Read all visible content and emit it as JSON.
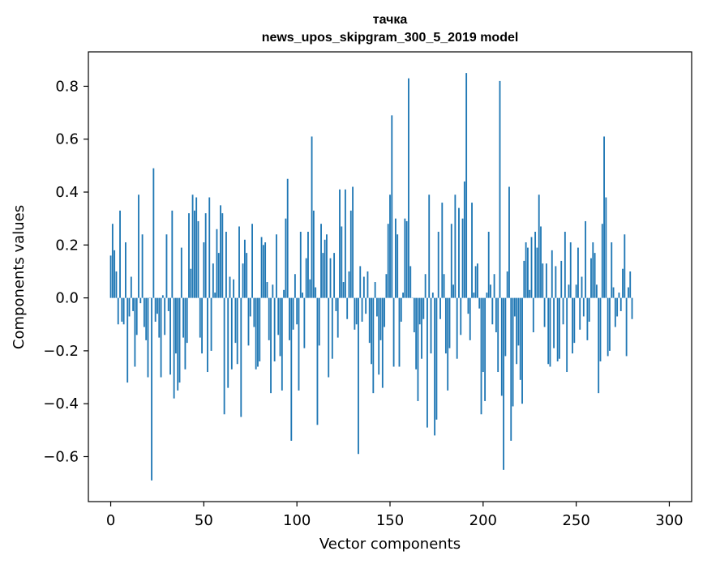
{
  "chart_data": {
    "type": "bar",
    "title_line1": "тачка",
    "title_line2": "news_upos_skipgram_300_5_2019 model",
    "xlabel": "Vector components",
    "ylabel": "Components values",
    "xlim": [
      -12,
      312
    ],
    "ylim": [
      -0.77,
      0.93
    ],
    "xticks": [
      0,
      50,
      100,
      150,
      200,
      250,
      300
    ],
    "xtick_labels": [
      "0",
      "50",
      "100",
      "150",
      "200",
      "250",
      "300"
    ],
    "yticks": [
      -0.6,
      -0.4,
      -0.2,
      0.0,
      0.2,
      0.4,
      0.6,
      0.8
    ],
    "ytick_labels": [
      "−0.6",
      "−0.4",
      "−0.2",
      "0.0",
      "0.2",
      "0.4",
      "0.6",
      "0.8"
    ],
    "bar_color": "#1f77b4",
    "grid": false,
    "legend": "none",
    "x_start": 0,
    "values": [
      0.16,
      0.28,
      0.18,
      0.1,
      -0.1,
      0.33,
      -0.09,
      -0.1,
      0.21,
      -0.32,
      -0.07,
      0.08,
      -0.05,
      -0.26,
      -0.14,
      0.39,
      -0.02,
      0.24,
      -0.11,
      -0.16,
      -0.3,
      0.0,
      -0.69,
      0.49,
      -0.09,
      -0.06,
      -0.15,
      -0.3,
      0.01,
      -0.14,
      0.24,
      -0.05,
      -0.29,
      0.33,
      -0.38,
      -0.21,
      -0.35,
      -0.32,
      0.19,
      -0.15,
      -0.27,
      -0.17,
      0.32,
      0.11,
      0.39,
      0.33,
      0.38,
      0.29,
      -0.15,
      -0.21,
      0.21,
      0.32,
      -0.28,
      0.38,
      -0.2,
      0.13,
      0.02,
      0.26,
      0.17,
      0.35,
      0.32,
      -0.44,
      0.25,
      -0.34,
      0.08,
      -0.27,
      0.07,
      -0.17,
      -0.25,
      0.27,
      -0.45,
      0.13,
      0.22,
      0.17,
      -0.18,
      -0.07,
      0.28,
      -0.11,
      -0.27,
      -0.26,
      -0.24,
      0.23,
      0.2,
      0.21,
      0.06,
      -0.16,
      -0.36,
      0.05,
      -0.24,
      0.24,
      -0.14,
      -0.22,
      -0.35,
      0.03,
      0.3,
      0.45,
      -0.16,
      -0.54,
      -0.12,
      0.09,
      -0.1,
      -0.35,
      0.25,
      0.02,
      -0.19,
      0.15,
      0.25,
      0.07,
      0.61,
      0.33,
      0.04,
      -0.48,
      -0.18,
      0.28,
      0.17,
      0.22,
      0.24,
      -0.3,
      0.15,
      -0.23,
      0.17,
      -0.05,
      -0.15,
      0.41,
      0.27,
      0.06,
      0.41,
      -0.08,
      0.1,
      0.33,
      0.42,
      -0.12,
      -0.1,
      -0.59,
      0.12,
      -0.09,
      0.08,
      -0.06,
      0.1,
      -0.17,
      -0.25,
      -0.36,
      0.06,
      -0.07,
      -0.29,
      -0.16,
      -0.34,
      -0.11,
      0.09,
      0.28,
      0.39,
      0.69,
      -0.26,
      0.3,
      0.24,
      -0.26,
      -0.09,
      0.02,
      0.3,
      0.29,
      0.83,
      0.12,
      0.0,
      -0.13,
      -0.27,
      -0.39,
      -0.1,
      -0.23,
      -0.08,
      0.09,
      -0.49,
      0.39,
      -0.21,
      0.02,
      -0.52,
      -0.46,
      0.25,
      -0.08,
      0.36,
      0.09,
      -0.21,
      -0.35,
      -0.19,
      0.28,
      0.05,
      0.39,
      -0.23,
      0.34,
      -0.14,
      0.3,
      0.44,
      0.85,
      -0.06,
      -0.16,
      0.36,
      0.02,
      0.12,
      0.13,
      -0.04,
      -0.44,
      -0.28,
      -0.39,
      0.02,
      0.25,
      0.05,
      -0.1,
      0.09,
      -0.13,
      -0.28,
      0.82,
      -0.37,
      -0.65,
      -0.22,
      0.1,
      0.42,
      -0.54,
      -0.41,
      -0.07,
      -0.25,
      -0.18,
      -0.31,
      -0.4,
      0.14,
      0.21,
      0.19,
      0.03,
      0.23,
      -0.13,
      0.25,
      0.19,
      0.39,
      0.27,
      0.13,
      -0.11,
      0.13,
      -0.25,
      -0.26,
      0.18,
      -0.19,
      0.12,
      -0.24,
      -0.23,
      0.14,
      -0.1,
      0.25,
      -0.28,
      0.05,
      0.21,
      -0.21,
      -0.17,
      0.05,
      0.19,
      -0.12,
      0.08,
      -0.07,
      0.29,
      -0.16,
      -0.09,
      0.15,
      0.21,
      0.17,
      0.05,
      -0.36,
      -0.24,
      0.28,
      0.61,
      0.38,
      -0.22,
      -0.2,
      0.21,
      0.04,
      -0.11,
      -0.07,
      0.02,
      -0.05,
      0.11,
      0.24,
      -0.22,
      0.04,
      0.1,
      -0.08
    ]
  }
}
